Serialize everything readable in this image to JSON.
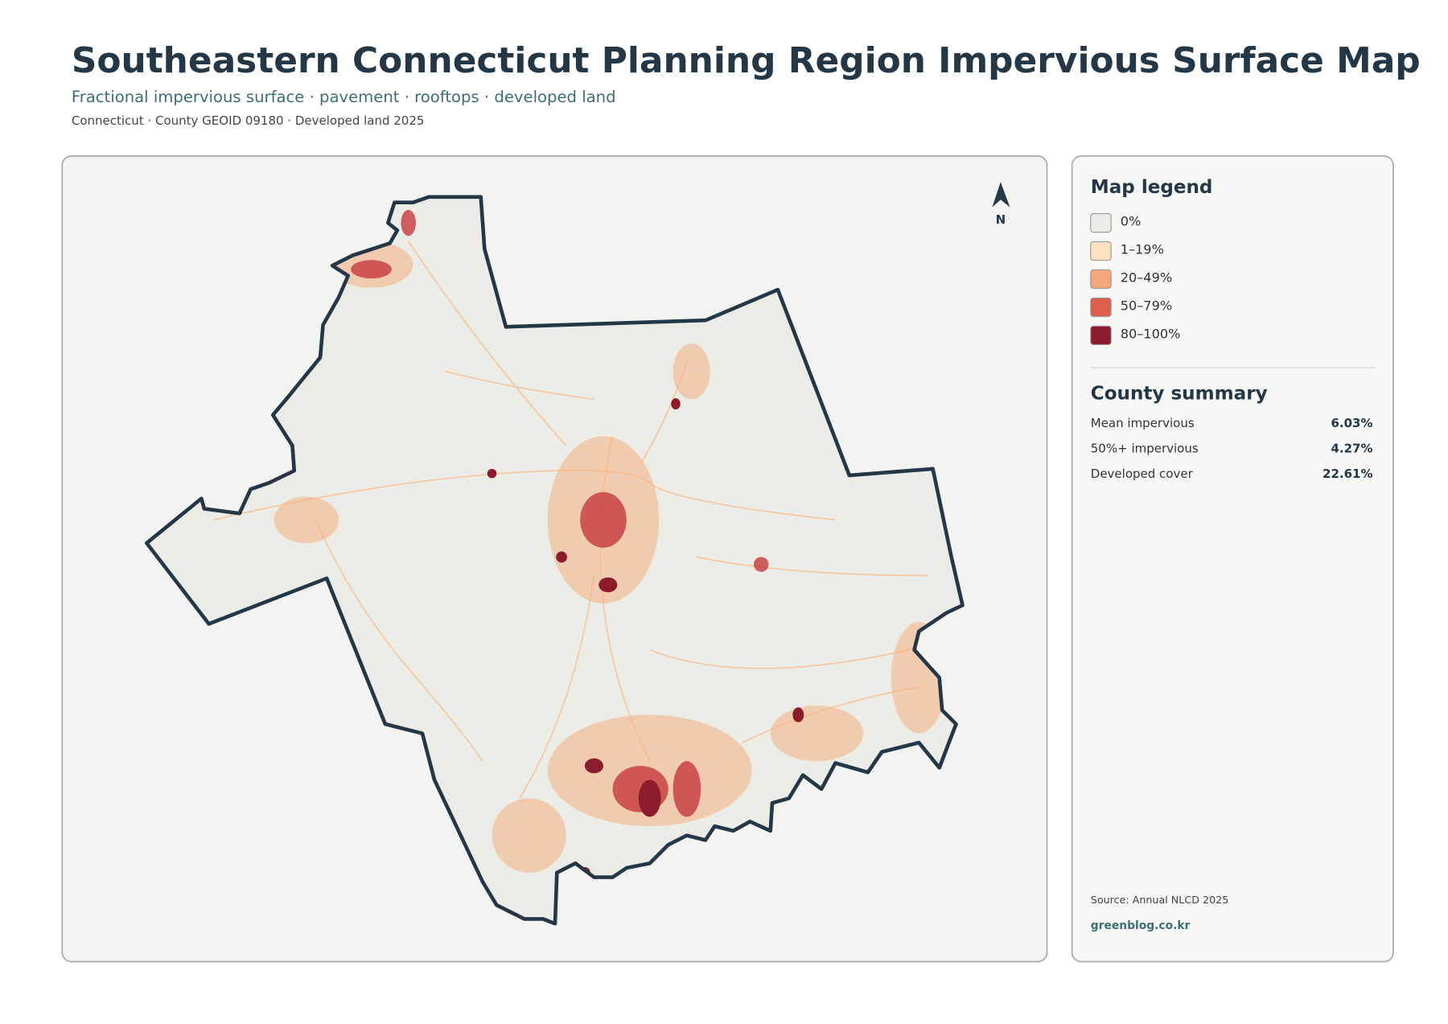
{
  "header": {
    "title": "Southeastern Connecticut Planning Region Impervious Surface Map",
    "subtitle": "Fractional impervious surface · pavement · rooftops · developed land",
    "meta": "Connecticut · County GEOID 09180 · Developed land 2025"
  },
  "map": {
    "north_label": "N"
  },
  "legend": {
    "title": "Map legend",
    "items": [
      {
        "label": "0%",
        "color": "#ecece7"
      },
      {
        "label": "1–19%",
        "color": "#fde0bd"
      },
      {
        "label": "20–49%",
        "color": "#f4a57a"
      },
      {
        "label": "50–79%",
        "color": "#dd5e4c"
      },
      {
        "label": "80–100%",
        "color": "#8c1c2c"
      }
    ]
  },
  "summary": {
    "title": "County summary",
    "rows": [
      {
        "label": "Mean impervious",
        "value": "6.03%"
      },
      {
        "label": "50%+ impervious",
        "value": "4.27%"
      },
      {
        "label": "Developed cover",
        "value": "22.61%"
      }
    ]
  },
  "footer": {
    "source": "Source: Annual NLCD 2025",
    "site": "greenblog.co.kr"
  }
}
